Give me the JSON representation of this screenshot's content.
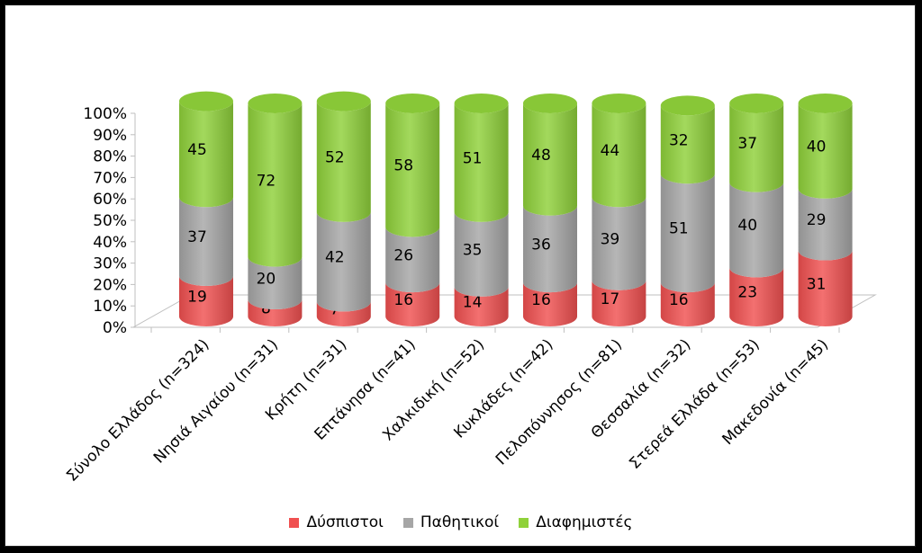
{
  "chart_data": {
    "type": "bar",
    "stacked": "percent",
    "categories": [
      "Σύνολο Ελλάδος (n=324)",
      "Νησιά Αιγαίου (n=31)",
      "Κρήτη (n=31)",
      "Επτάνησα (n=41)",
      "Χαλκιδική (n=52)",
      "Κυκλάδες (n=42)",
      "Πελοπόννησος (n=81)",
      "Θεσσαλία (n=32)",
      "Στερεά Ελλάδα (n=53)",
      "Μακεδονία (n=45)"
    ],
    "series": [
      {
        "name": "Δύσπιστοι",
        "color": "#f05050",
        "values": [
          19,
          8,
          7,
          16,
          14,
          16,
          17,
          16,
          23,
          31
        ]
      },
      {
        "name": "Παθητικοί",
        "color": "#a6a6a6",
        "values": [
          37,
          20,
          42,
          26,
          35,
          36,
          39,
          51,
          40,
          29
        ]
      },
      {
        "name": "Διαφημιστές",
        "color": "#8fd13a",
        "values": [
          45,
          72,
          52,
          58,
          51,
          48,
          44,
          32,
          37,
          40
        ]
      }
    ],
    "yticks": [
      "0%",
      "10%",
      "20%",
      "30%",
      "40%",
      "50%",
      "60%",
      "70%",
      "80%",
      "90%",
      "100%"
    ],
    "ylim": [
      0,
      100
    ],
    "legend_position": "bottom",
    "grid": false
  }
}
